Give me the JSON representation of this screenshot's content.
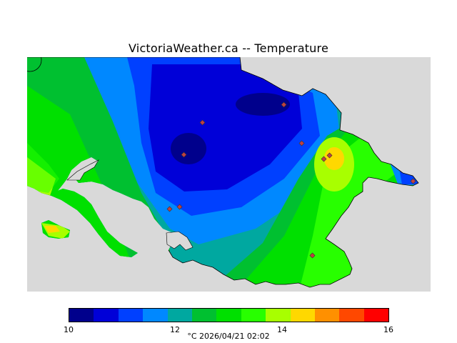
{
  "title": "VictoriaWeather.ca -- Temperature",
  "colors": {
    "land_base": "#00a8a0",
    "water": "#d9d9d9",
    "station": "#c04040"
  },
  "map": {
    "stations": 10
  },
  "legend": {
    "colors": [
      "#00008c",
      "#0000d8",
      "#0040ff",
      "#0088ff",
      "#00a8a0",
      "#00c030",
      "#00e000",
      "#28ff00",
      "#a8ff00",
      "#ffd800",
      "#ff9000",
      "#ff4800",
      "#ff0000"
    ],
    "ticks": [
      "10",
      "12",
      "14",
      "16"
    ],
    "unit_time": "°C  2026/04/21 02:02"
  }
}
